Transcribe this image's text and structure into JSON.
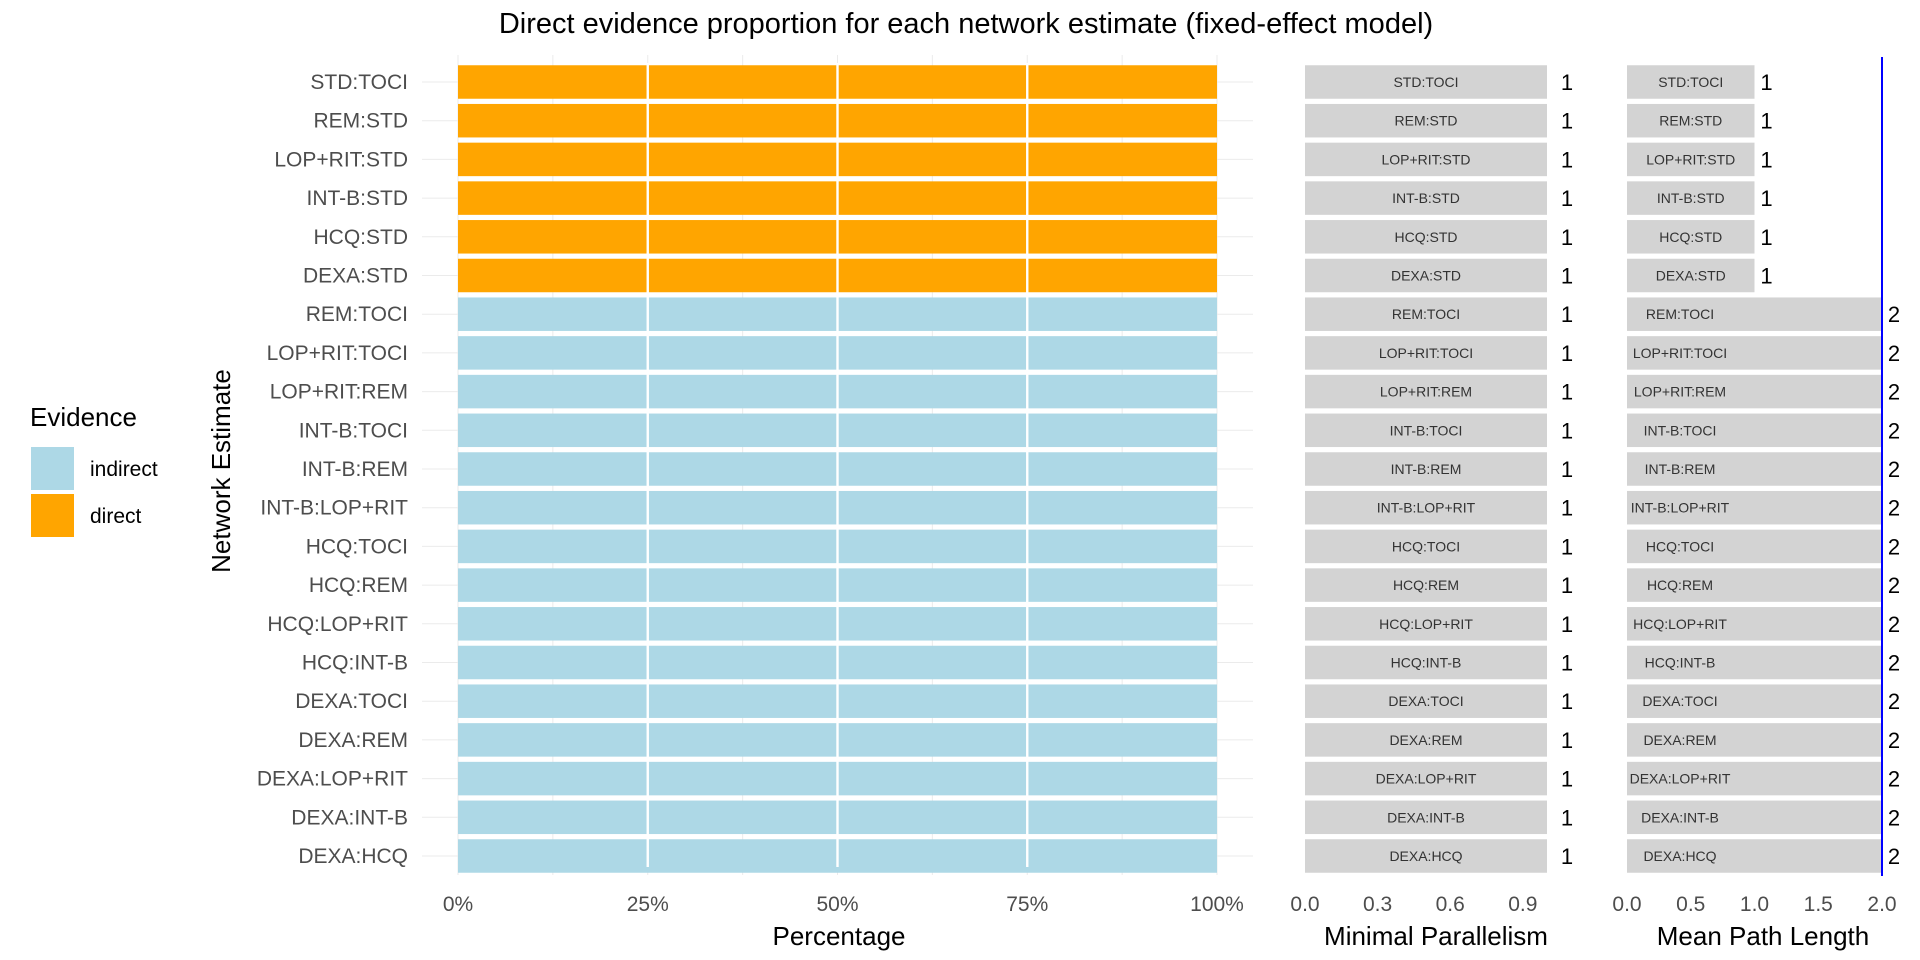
{
  "colors": {
    "indirect": "#add8e6",
    "direct": "#ffa500",
    "gray_bar": "#d3d3d3",
    "reference_line": "#0000ff"
  },
  "chart_data": [
    {
      "type": "bar",
      "orientation": "horizontal",
      "stacked": true,
      "title": "Direct evidence proportion for each network estimate (fixed-effect model)",
      "xlabel": "Percentage",
      "ylabel": "Network Estimate",
      "xlim": [
        0,
        1
      ],
      "xticks": [
        "0%",
        "25%",
        "50%",
        "75%",
        "100%"
      ],
      "grid": true,
      "legend": {
        "title": "Evidence",
        "position": "left",
        "entries": [
          "indirect",
          "direct"
        ]
      },
      "categories": [
        "STD:TOCI",
        "REM:STD",
        "LOP+RIT:STD",
        "INT-B:STD",
        "HCQ:STD",
        "DEXA:STD",
        "REM:TOCI",
        "LOP+RIT:TOCI",
        "LOP+RIT:REM",
        "INT-B:TOCI",
        "INT-B:REM",
        "INT-B:LOP+RIT",
        "HCQ:TOCI",
        "HCQ:REM",
        "HCQ:LOP+RIT",
        "HCQ:INT-B",
        "DEXA:TOCI",
        "DEXA:REM",
        "DEXA:LOP+RIT",
        "DEXA:INT-B",
        "DEXA:HCQ"
      ],
      "series": [
        {
          "name": "direct",
          "values": [
            1,
            1,
            1,
            1,
            1,
            1,
            0,
            0,
            0,
            0,
            0,
            0,
            0,
            0,
            0,
            0,
            0,
            0,
            0,
            0,
            0
          ]
        },
        {
          "name": "indirect",
          "values": [
            0,
            0,
            0,
            0,
            0,
            0,
            1,
            1,
            1,
            1,
            1,
            1,
            1,
            1,
            1,
            1,
            1,
            1,
            1,
            1,
            1
          ]
        }
      ]
    },
    {
      "type": "bar",
      "orientation": "horizontal",
      "xlabel": "Minimal Parallelism",
      "xlim": [
        0,
        1
      ],
      "xticks": [
        "0.0",
        "0.3",
        "0.6",
        "0.9"
      ],
      "grid": false,
      "categories": [
        "STD:TOCI",
        "REM:STD",
        "LOP+RIT:STD",
        "INT-B:STD",
        "HCQ:STD",
        "DEXA:STD",
        "REM:TOCI",
        "LOP+RIT:TOCI",
        "LOP+RIT:REM",
        "INT-B:TOCI",
        "INT-B:REM",
        "INT-B:LOP+RIT",
        "HCQ:TOCI",
        "HCQ:REM",
        "HCQ:LOP+RIT",
        "HCQ:INT-B",
        "DEXA:TOCI",
        "DEXA:REM",
        "DEXA:LOP+RIT",
        "DEXA:INT-B",
        "DEXA:HCQ"
      ],
      "values": [
        1,
        1,
        1,
        1,
        1,
        1,
        1,
        1,
        1,
        1,
        1,
        1,
        1,
        1,
        1,
        1,
        1,
        1,
        1,
        1,
        1
      ],
      "value_labels": [
        "1",
        "1",
        "1",
        "1",
        "1",
        "1",
        "1",
        "1",
        "1",
        "1",
        "1",
        "1",
        "1",
        "1",
        "1",
        "1",
        "1",
        "1",
        "1",
        "1",
        "1"
      ]
    },
    {
      "type": "bar",
      "orientation": "horizontal",
      "xlabel": "Mean Path Length",
      "xlim": [
        0,
        2
      ],
      "xticks": [
        "0.0",
        "0.5",
        "1.0",
        "1.5",
        "2.0"
      ],
      "reference_line": 2,
      "grid": false,
      "categories": [
        "STD:TOCI",
        "REM:STD",
        "LOP+RIT:STD",
        "INT-B:STD",
        "HCQ:STD",
        "DEXA:STD",
        "REM:TOCI",
        "LOP+RIT:TOCI",
        "LOP+RIT:REM",
        "INT-B:TOCI",
        "INT-B:REM",
        "INT-B:LOP+RIT",
        "HCQ:TOCI",
        "HCQ:REM",
        "HCQ:LOP+RIT",
        "HCQ:INT-B",
        "DEXA:TOCI",
        "DEXA:REM",
        "DEXA:LOP+RIT",
        "DEXA:INT-B",
        "DEXA:HCQ"
      ],
      "values": [
        1,
        1,
        1,
        1,
        1,
        1,
        2,
        2,
        2,
        2,
        2,
        2,
        2,
        2,
        2,
        2,
        2,
        2,
        2,
        2,
        2
      ],
      "value_labels": [
        "1",
        "1",
        "1",
        "1",
        "1",
        "1",
        "2",
        "2",
        "2",
        "2",
        "2",
        "2",
        "2",
        "2",
        "2",
        "2",
        "2",
        "2",
        "2",
        "2",
        "2"
      ]
    }
  ]
}
